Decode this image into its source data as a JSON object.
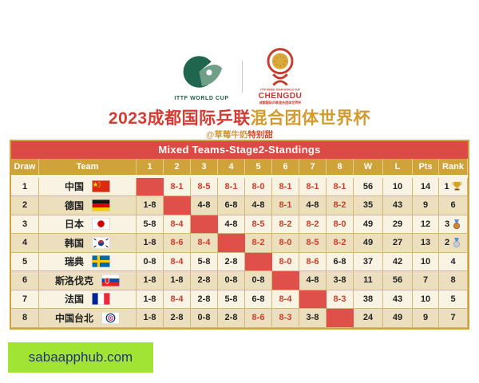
{
  "header": {
    "ittf_logo_text": "ITTF WORLD CUP",
    "chengdu_logo": {
      "micro_top": "ITTF MIXED TEAM WORLD CUP",
      "name": "CHENGDU",
      "micro_bottom": "成都国际乒联混合团体世界杯"
    },
    "title_red": "2023成都国际乒联",
    "title_gold": "混合团体世界杯",
    "handle_gold": "@草莓牛奶",
    "handle_red": "特别甜"
  },
  "chart_data": {
    "type": "table",
    "title": "Mixed Teams-Stage2-Standings",
    "columns": [
      "Draw",
      "Team",
      "1",
      "2",
      "3",
      "4",
      "5",
      "6",
      "7",
      "8",
      "W",
      "L",
      "Pts",
      "Rank"
    ],
    "rows": [
      {
        "draw": "1",
        "team": "中国",
        "flag": "cn",
        "scores": [
          "",
          "8-1",
          "8-5",
          "8-1",
          "8-0",
          "8-1",
          "8-1",
          "8-1"
        ],
        "w": "56",
        "l": "10",
        "pts": "14",
        "rank": "1",
        "rank_icon": "trophy"
      },
      {
        "draw": "2",
        "team": "德国",
        "flag": "de",
        "scores": [
          "1-8",
          "",
          "4-8",
          "6-8",
          "4-8",
          "8-1",
          "4-8",
          "8-2"
        ],
        "w": "35",
        "l": "43",
        "pts": "9",
        "rank": "6",
        "rank_icon": ""
      },
      {
        "draw": "3",
        "team": "日本",
        "flag": "jp",
        "scores": [
          "5-8",
          "8-4",
          "",
          "4-8",
          "8-5",
          "8-2",
          "8-2",
          "8-0"
        ],
        "w": "49",
        "l": "29",
        "pts": "12",
        "rank": "3",
        "rank_icon": "bronze"
      },
      {
        "draw": "4",
        "team": "韩国",
        "flag": "kr",
        "scores": [
          "1-8",
          "8-6",
          "8-4",
          "",
          "8-2",
          "8-0",
          "8-5",
          "8-2"
        ],
        "w": "49",
        "l": "27",
        "pts": "13",
        "rank": "2",
        "rank_icon": "silver"
      },
      {
        "draw": "5",
        "team": "瑞典",
        "flag": "se",
        "scores": [
          "0-8",
          "8-4",
          "5-8",
          "2-8",
          "",
          "8-0",
          "8-6",
          "6-8"
        ],
        "w": "37",
        "l": "42",
        "pts": "10",
        "rank": "4",
        "rank_icon": ""
      },
      {
        "draw": "6",
        "team": "斯洛伐克",
        "flag": "sk",
        "scores": [
          "1-8",
          "1-8",
          "2-8",
          "0-8",
          "0-8",
          "",
          "4-8",
          "3-8"
        ],
        "w": "11",
        "l": "56",
        "pts": "7",
        "rank": "8",
        "rank_icon": ""
      },
      {
        "draw": "7",
        "team": "法国",
        "flag": "fr",
        "scores": [
          "1-8",
          "8-4",
          "2-8",
          "5-8",
          "6-8",
          "8-4",
          "",
          "8-3"
        ],
        "w": "38",
        "l": "43",
        "pts": "10",
        "rank": "5",
        "rank_icon": ""
      },
      {
        "draw": "8",
        "team": "中国台北",
        "flag": "tpe",
        "scores": [
          "1-8",
          "2-8",
          "0-8",
          "2-8",
          "8-6",
          "8-3",
          "3-8",
          ""
        ],
        "w": "24",
        "l": "49",
        "pts": "9",
        "rank": "7",
        "rank_icon": ""
      }
    ]
  },
  "watermark": {
    "text": "sabaapphub.com"
  },
  "colors": {
    "table_red": "#dc4a45",
    "self_cell_red": "#e0504b",
    "header_gold": "#cfa23a",
    "win_text_red": "#c9402e",
    "row_light": "#f8f3e2",
    "row_dark": "#ecdfbd",
    "title_red": "#d63a31",
    "title_gold": "#d39a2f",
    "watermark_bg": "#a2e434",
    "watermark_text": "#24356e"
  }
}
